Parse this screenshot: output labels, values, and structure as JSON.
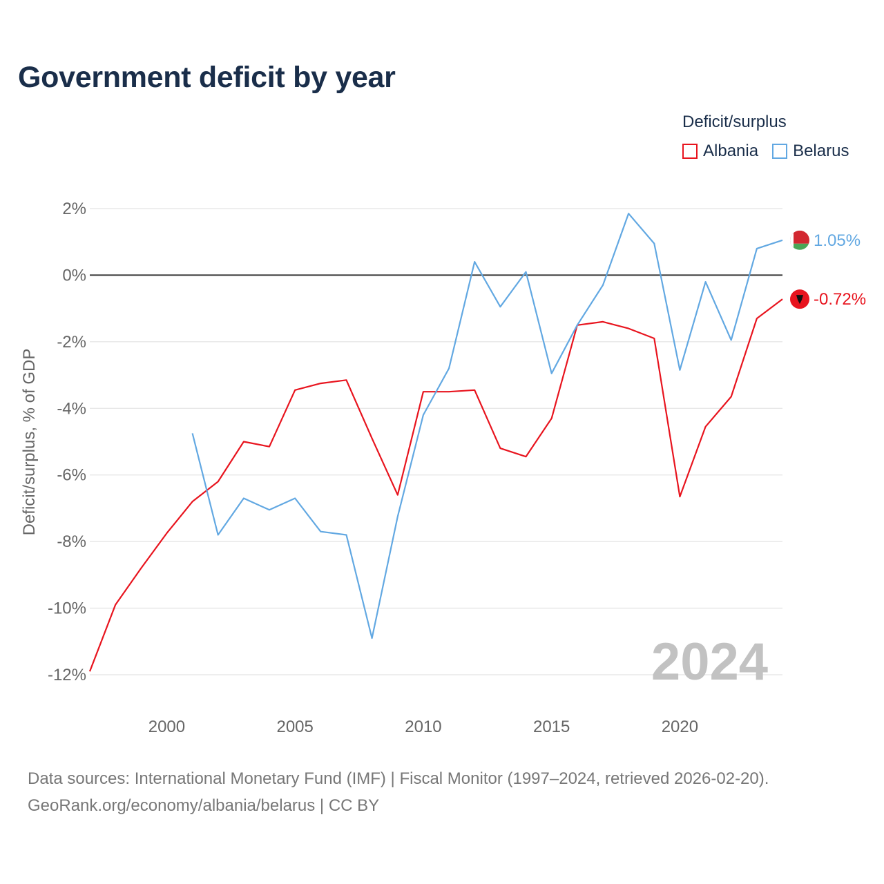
{
  "title": "Government deficit by year",
  "legend_title": "Deficit/surplus",
  "year_label": "2024",
  "sources_line1": "Data sources: International Monetary Fund (IMF) | Fiscal Monitor (1997–2024, retrieved 2026-02-20).",
  "sources_line2": "GeoRank.org/economy/albania/belarus | CC BY",
  "chart_data": {
    "type": "line",
    "title": "Government deficit by year",
    "xlabel": "",
    "ylabel": "Deficit/surplus, % of GDP",
    "xlim": [
      1997,
      2024
    ],
    "ylim": [
      -12,
      2
    ],
    "x_ticks": [
      2000,
      2005,
      2010,
      2015,
      2020
    ],
    "x_tick_labels": [
      "2000",
      "2005",
      "2010",
      "2015",
      "2020"
    ],
    "y_ticks": [
      2,
      0,
      -2,
      -4,
      -6,
      -8,
      -10,
      -12
    ],
    "y_tick_labels": [
      "2%",
      "0%",
      "-2%",
      "-4%",
      "-6%",
      "-8%",
      "-10%",
      "-12%"
    ],
    "grid": true,
    "legend_position": "top-right",
    "series": [
      {
        "name": "Albania",
        "color": "#e8141e",
        "x": [
          1997,
          1998,
          1999,
          2000,
          2001,
          2002,
          2003,
          2004,
          2005,
          2006,
          2007,
          2008,
          2009,
          2010,
          2011,
          2012,
          2013,
          2014,
          2015,
          2016,
          2017,
          2018,
          2019,
          2020,
          2021,
          2022,
          2023,
          2024
        ],
        "values": [
          -11.9,
          -9.9,
          -8.8,
          -7.75,
          -6.8,
          -6.2,
          -5.0,
          -5.15,
          -3.45,
          -3.25,
          -3.15,
          -4.9,
          -6.6,
          -3.5,
          -3.5,
          -3.45,
          -5.2,
          -5.45,
          -4.3,
          -1.5,
          -1.4,
          -1.6,
          -1.9,
          -6.65,
          -4.55,
          -3.65,
          -1.3,
          -0.72
        ],
        "end_label": "-0.72%",
        "end_icon": "albania-flag-icon"
      },
      {
        "name": "Belarus",
        "color": "#62a8e2",
        "x": [
          2001,
          2002,
          2003,
          2004,
          2005,
          2006,
          2007,
          2008,
          2009,
          2010,
          2011,
          2012,
          2013,
          2014,
          2015,
          2016,
          2017,
          2018,
          2019,
          2020,
          2021,
          2022,
          2023,
          2024
        ],
        "values": [
          -4.75,
          -7.8,
          -6.7,
          -7.05,
          -6.7,
          -7.7,
          -7.8,
          -10.9,
          -7.25,
          -4.2,
          -2.8,
          0.4,
          -0.95,
          0.1,
          -2.95,
          -1.5,
          -0.3,
          1.85,
          0.95,
          -2.85,
          -0.2,
          -1.95,
          0.8,
          1.05
        ],
        "end_label": "1.05%",
        "end_icon": "belarus-flag-icon"
      }
    ]
  }
}
